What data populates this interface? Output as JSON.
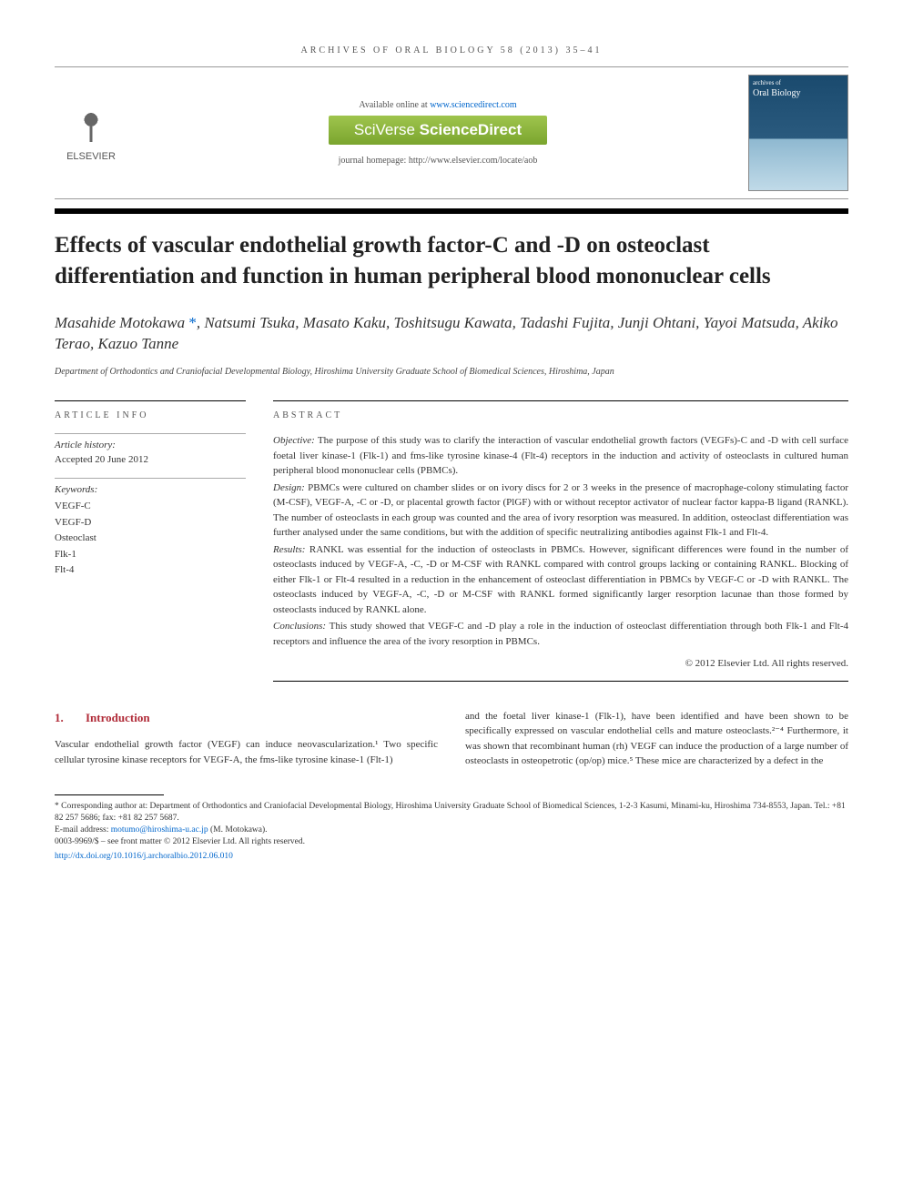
{
  "journal_header": "ARCHIVES OF ORAL BIOLOGY 58 (2013) 35–41",
  "available_text": "Available online at ",
  "available_link": "www.sciencedirect.com",
  "sciverse_prefix": "SciVerse ",
  "sciverse_main": "ScienceDirect",
  "homepage_label": "journal homepage: http://www.elsevier.com/locate/aob",
  "elsevier_label": "ELSEVIER",
  "cover_small": "archives of",
  "cover_title": "Oral Biology",
  "article_title": "Effects of vascular endothelial growth factor-C and -D on osteoclast differentiation and function in human peripheral blood mononuclear cells",
  "authors_line1": "Masahide Motokawa ",
  "authors_asterisk": "*",
  "authors_line1b": ", Natsumi Tsuka, Masato Kaku, Toshitsugu Kawata, Tadashi Fujita, Junji Ohtani, Yayoi Matsuda, Akiko Terao, Kazuo Tanne",
  "affiliation": "Department of Orthodontics and Craniofacial Developmental Biology, Hiroshima University Graduate School of Biomedical Sciences, Hiroshima, Japan",
  "info_heading": "ARTICLE INFO",
  "abstract_heading": "ABSTRACT",
  "history_label": "Article history:",
  "history_value": "Accepted 20 June 2012",
  "keywords_label": "Keywords:",
  "keywords": [
    "VEGF-C",
    "VEGF-D",
    "Osteoclast",
    "Flk-1",
    "Flt-4"
  ],
  "abstract": {
    "objective_label": "Objective:",
    "objective": " The purpose of this study was to clarify the interaction of vascular endothelial growth factors (VEGFs)-C and -D with cell surface foetal liver kinase-1 (Flk-1) and fms-like tyrosine kinase-4 (Flt-4) receptors in the induction and activity of osteoclasts in cultured human peripheral blood mononuclear cells (PBMCs).",
    "design_label": "Design:",
    "design": " PBMCs were cultured on chamber slides or on ivory discs for 2 or 3 weeks in the presence of macrophage-colony stimulating factor (M-CSF), VEGF-A, -C or -D, or placental growth factor (PlGF) with or without receptor activator of nuclear factor kappa-B ligand (RANKL). The number of osteoclasts in each group was counted and the area of ivory resorption was measured. In addition, osteoclast differentiation was further analysed under the same conditions, but with the addition of specific neutralizing antibodies against Flk-1 and Flt-4.",
    "results_label": "Results:",
    "results": " RANKL was essential for the induction of osteoclasts in PBMCs. However, significant differences were found in the number of osteoclasts induced by VEGF-A, -C, -D or M-CSF with RANKL compared with control groups lacking or containing RANKL. Blocking of either Flk-1 or Flt-4 resulted in a reduction in the enhancement of osteoclast differentiation in PBMCs by VEGF-C or -D with RANKL. The osteoclasts induced by VEGF-A, -C, -D or M-CSF with RANKL formed significantly larger resorption lacunae than those formed by osteoclasts induced by RANKL alone.",
    "conclusions_label": "Conclusions:",
    "conclusions": " This study showed that VEGF-C and -D play a role in the induction of osteoclast differentiation through both Flk-1 and Flt-4 receptors and influence the area of the ivory resorption in PBMCs."
  },
  "copyright": "© 2012 Elsevier Ltd. All rights reserved.",
  "section1_num": "1.",
  "section1_title": "Introduction",
  "intro_col1": "Vascular endothelial growth factor (VEGF) can induce neovascularization.¹ Two specific cellular tyrosine kinase receptors for VEGF-A, the fms-like tyrosine kinase-1 (Flt-1)",
  "intro_col2": "and the foetal liver kinase-1 (Flk-1), have been identified and have been shown to be specifically expressed on vascular endothelial cells and mature osteoclasts.²⁻⁴ Furthermore, it was shown that recombinant human (rh) VEGF can induce the production of a large number of osteoclasts in osteopetrotic (op/op) mice.⁵ These mice are characterized by a defect in the",
  "footnote_corr": "* Corresponding author at: Department of Orthodontics and Craniofacial Developmental Biology, Hiroshima University Graduate School of Biomedical Sciences, 1-2-3 Kasumi, Minami-ku, Hiroshima 734-8553, Japan. Tel.: +81 82 257 5686; fax: +81 82 257 5687.",
  "footnote_email_label": "E-mail address: ",
  "footnote_email": "motumo@hiroshima-u.ac.jp",
  "footnote_email_suffix": " (M. Motokawa).",
  "issn_line": "0003-9969/$ – see front matter © 2012 Elsevier Ltd. All rights reserved.",
  "doi_link": "http://dx.doi.org/10.1016/j.archoralbio.2012.06.010",
  "colors": {
    "heading_red": "#b02a37",
    "link_blue": "#0066cc",
    "sciverse_bg": "#8ab53a",
    "elsevier_orange": "#ff6600"
  }
}
